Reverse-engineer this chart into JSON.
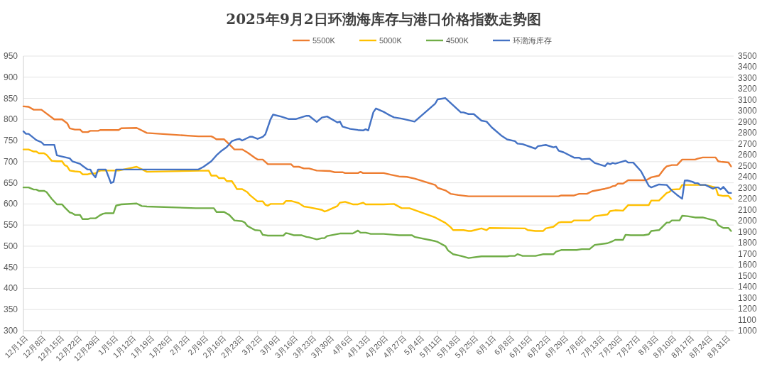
{
  "chart_data": {
    "type": "line",
    "title": "2025年9月2日环渤海库存与港口价格指数走势图",
    "legend": "top",
    "grid": "y",
    "line_style": "solid",
    "marker": "none",
    "xlim": [
      "2024-12-01",
      "2025-09-03"
    ],
    "xticks": [
      {
        "value": "2024-12-01",
        "label": "12月1日"
      },
      {
        "value": "2024-12-08",
        "label": "12月8日"
      },
      {
        "value": "2024-12-15",
        "label": "12月15日"
      },
      {
        "value": "2024-12-22",
        "label": "12月22日"
      },
      {
        "value": "2024-12-29",
        "label": "12月29日"
      },
      {
        "value": "2025-01-05",
        "label": "1月5日"
      },
      {
        "value": "2025-01-12",
        "label": "1月12日"
      },
      {
        "value": "2025-01-19",
        "label": "1月19日"
      },
      {
        "value": "2025-01-26",
        "label": "1月26日"
      },
      {
        "value": "2025-02-02",
        "label": "2月2日"
      },
      {
        "value": "2025-02-09",
        "label": "2月9日"
      },
      {
        "value": "2025-02-16",
        "label": "2月16日"
      },
      {
        "value": "2025-02-23",
        "label": "2月23日"
      },
      {
        "value": "2025-03-02",
        "label": "3月2日"
      },
      {
        "value": "2025-03-09",
        "label": "3月9日"
      },
      {
        "value": "2025-03-16",
        "label": "3月16日"
      },
      {
        "value": "2025-03-23",
        "label": "3月23日"
      },
      {
        "value": "2025-03-30",
        "label": "3月30日"
      },
      {
        "value": "2025-04-06",
        "label": "4月6日"
      },
      {
        "value": "2025-04-13",
        "label": "4月13日"
      },
      {
        "value": "2025-04-20",
        "label": "4月20日"
      },
      {
        "value": "2025-04-27",
        "label": "4月27日"
      },
      {
        "value": "2025-05-04",
        "label": "5月4日"
      },
      {
        "value": "2025-05-11",
        "label": "5月11日"
      },
      {
        "value": "2025-05-18",
        "label": "5月18日"
      },
      {
        "value": "2025-05-25",
        "label": "5月25日"
      },
      {
        "value": "2025-06-01",
        "label": "6月1日"
      },
      {
        "value": "2025-06-08",
        "label": "6月8日"
      },
      {
        "value": "2025-06-15",
        "label": "6月15日"
      },
      {
        "value": "2025-06-22",
        "label": "6月22日"
      },
      {
        "value": "2025-06-29",
        "label": "6月29日"
      },
      {
        "value": "2025-07-06",
        "label": "7月6日"
      },
      {
        "value": "2025-07-13",
        "label": "7月13日"
      },
      {
        "value": "2025-07-20",
        "label": "7月20日"
      },
      {
        "value": "2025-07-27",
        "label": "7月27日"
      },
      {
        "value": "2025-08-03",
        "label": "8月3日"
      },
      {
        "value": "2025-08-10",
        "label": "8月10日"
      },
      {
        "value": "2025-08-17",
        "label": "8月17日"
      },
      {
        "value": "2025-08-24",
        "label": "8月24日"
      },
      {
        "value": "2025-08-31",
        "label": "8月31日"
      }
    ],
    "ylim": [
      300,
      950
    ],
    "yticks": [
      300,
      350,
      400,
      450,
      500,
      550,
      600,
      650,
      700,
      750,
      800,
      850,
      900,
      950
    ],
    "y2lim": [
      1000,
      3500
    ],
    "y2ticks": [
      1000,
      1100,
      1200,
      1300,
      1400,
      1500,
      1600,
      1700,
      1800,
      1900,
      2000,
      2100,
      2200,
      2300,
      2400,
      2500,
      2600,
      2700,
      2800,
      2900,
      3000,
      3100,
      3200,
      3300,
      3400,
      3500
    ],
    "series": [
      {
        "name": "5500K",
        "color": "#ed7d31",
        "x": [
          "2024-12-01",
          "2024-12-03",
          "2024-12-05",
          "2024-12-08",
          "2024-12-13",
          "2024-12-16",
          "2024-12-18",
          "2024-12-19",
          "2024-12-21",
          "2024-12-23",
          "2024-12-24",
          "2024-12-26",
          "2024-12-27",
          "2024-12-30",
          "2024-12-31",
          "2025-01-07",
          "2025-01-08",
          "2025-01-14",
          "2025-01-18",
          "2025-02-07",
          "2025-02-12",
          "2025-02-13",
          "2025-02-14",
          "2025-02-17",
          "2025-02-19",
          "2025-02-21",
          "2025-02-24",
          "2025-02-26",
          "2025-03-01",
          "2025-03-02",
          "2025-03-04",
          "2025-03-06",
          "2025-03-15",
          "2025-03-16",
          "2025-03-18",
          "2025-03-20",
          "2025-03-22",
          "2025-03-25",
          "2025-03-30",
          "2025-04-01",
          "2025-04-04",
          "2025-04-05",
          "2025-04-10",
          "2025-04-11",
          "2025-04-12",
          "2025-04-20",
          "2025-04-23",
          "2025-04-26",
          "2025-04-29",
          "2025-05-02",
          "2025-05-10",
          "2025-05-11",
          "2025-05-14",
          "2025-05-16",
          "2025-05-19",
          "2025-05-23",
          "2025-06-27",
          "2025-06-28",
          "2025-07-03",
          "2025-07-05",
          "2025-07-08",
          "2025-07-10",
          "2025-07-15",
          "2025-07-17",
          "2025-07-18",
          "2025-07-19",
          "2025-07-20",
          "2025-07-22",
          "2025-07-24",
          "2025-07-31",
          "2025-08-02",
          "2025-08-05",
          "2025-08-07",
          "2025-08-08",
          "2025-08-10",
          "2025-08-12",
          "2025-08-14",
          "2025-08-19",
          "2025-08-20",
          "2025-08-22",
          "2025-08-27",
          "2025-08-28",
          "2025-08-29",
          "2025-09-01",
          "2025-09-02"
        ],
        "values": [
          831,
          830,
          823,
          823,
          800,
          800,
          791,
          779,
          776,
          776,
          770,
          770,
          773,
          773,
          775,
          775,
          779,
          780,
          768,
          760,
          760,
          757,
          753,
          753,
          741,
          729,
          729,
          722,
          709,
          705,
          705,
          694,
          694,
          688,
          688,
          684,
          684,
          679,
          678,
          675,
          675,
          673,
          673,
          676,
          673,
          673,
          669,
          665,
          664,
          660,
          645,
          638,
          632,
          624,
          621,
          618,
          618,
          620,
          620,
          624,
          624,
          630,
          636,
          639,
          642,
          643,
          648,
          648,
          656,
          656,
          663,
          667,
          683,
          689,
          692,
          692,
          705,
          705,
          707,
          710,
          710,
          701,
          700,
          698,
          689
        ]
      },
      {
        "name": "5000K",
        "color": "#ffc000",
        "x": [
          "2024-12-01",
          "2024-12-03",
          "2024-12-05",
          "2024-12-06",
          "2024-12-07",
          "2024-12-09",
          "2024-12-10",
          "2024-12-12",
          "2024-12-14",
          "2024-12-16",
          "2024-12-17",
          "2024-12-18",
          "2024-12-19",
          "2024-12-21",
          "2024-12-23",
          "2024-12-24",
          "2024-12-26",
          "2024-12-27",
          "2024-12-29",
          "2024-12-30",
          "2024-12-31",
          "2025-01-07",
          "2025-01-14",
          "2025-01-15",
          "2025-01-18",
          "2025-02-11",
          "2025-02-12",
          "2025-02-14",
          "2025-02-15",
          "2025-02-17",
          "2025-02-18",
          "2025-02-20",
          "2025-02-21",
          "2025-02-22",
          "2025-02-24",
          "2025-02-26",
          "2025-02-27",
          "2025-02-28",
          "2025-03-02",
          "2025-03-04",
          "2025-03-05",
          "2025-03-06",
          "2025-03-07",
          "2025-03-12",
          "2025-03-13",
          "2025-03-15",
          "2025-03-18",
          "2025-03-20",
          "2025-03-22",
          "2025-03-27",
          "2025-03-28",
          "2025-03-29",
          "2025-04-02",
          "2025-04-03",
          "2025-04-05",
          "2025-04-08",
          "2025-04-10",
          "2025-04-12",
          "2025-04-13",
          "2025-04-16",
          "2025-04-20",
          "2025-04-24",
          "2025-04-27",
          "2025-04-30",
          "2025-05-10",
          "2025-05-14",
          "2025-05-16",
          "2025-05-17",
          "2025-05-21",
          "2025-05-23",
          "2025-05-24",
          "2025-05-28",
          "2025-05-30",
          "2025-05-31",
          "2025-06-14",
          "2025-06-15",
          "2025-06-18",
          "2025-06-21",
          "2025-06-22",
          "2025-06-25",
          "2025-06-27",
          "2025-06-28",
          "2025-07-02",
          "2025-07-03",
          "2025-07-09",
          "2025-07-11",
          "2025-07-16",
          "2025-07-17",
          "2025-07-19",
          "2025-07-22",
          "2025-07-24",
          "2025-08-01",
          "2025-08-02",
          "2025-08-05",
          "2025-08-08",
          "2025-08-09",
          "2025-08-10",
          "2025-08-13",
          "2025-08-14",
          "2025-08-23",
          "2025-08-27",
          "2025-08-28",
          "2025-08-30",
          "2025-09-01",
          "2025-09-02"
        ],
        "values": [
          729,
          729,
          724,
          724,
          720,
          720,
          716,
          702,
          701,
          701,
          692,
          689,
          679,
          677,
          676,
          670,
          670,
          672,
          672,
          677,
          679,
          679,
          688,
          685,
          676,
          679,
          667,
          667,
          661,
          661,
          654,
          654,
          645,
          635,
          635,
          628,
          621,
          616,
          606,
          606,
          598,
          596,
          600,
          600,
          607,
          607,
          602,
          594,
          592,
          586,
          582,
          584,
          595,
          603,
          605,
          599,
          599,
          603,
          599,
          599,
          599,
          600,
          590,
          590,
          568,
          555,
          545,
          538,
          538,
          536,
          536,
          542,
          538,
          543,
          542,
          538,
          536,
          536,
          542,
          546,
          556,
          557,
          557,
          561,
          561,
          571,
          575,
          583,
          585,
          584,
          597,
          597,
          608,
          608,
          626,
          628,
          634,
          635,
          645,
          645,
          639,
          621,
          619,
          619,
          612
        ]
      },
      {
        "name": "4500K",
        "color": "#70ad47",
        "x": [
          "2024-12-01",
          "2024-12-03",
          "2024-12-05",
          "2024-12-06",
          "2024-12-07",
          "2024-12-09",
          "2024-12-10",
          "2024-12-11",
          "2024-12-12",
          "2024-12-14",
          "2024-12-16",
          "2024-12-17",
          "2024-12-19",
          "2024-12-20",
          "2024-12-21",
          "2024-12-23",
          "2024-12-24",
          "2024-12-26",
          "2024-12-27",
          "2024-12-29",
          "2024-12-31",
          "2025-01-01",
          "2025-01-02",
          "2025-01-05",
          "2025-01-06",
          "2025-01-08",
          "2025-01-14",
          "2025-01-16",
          "2025-01-18",
          "2025-02-06",
          "2025-02-13",
          "2025-02-14",
          "2025-02-17",
          "2025-02-19",
          "2025-02-21",
          "2025-02-24",
          "2025-02-25",
          "2025-02-26",
          "2025-03-01",
          "2025-03-03",
          "2025-03-04",
          "2025-03-06",
          "2025-03-12",
          "2025-03-13",
          "2025-03-14",
          "2025-03-16",
          "2025-03-19",
          "2025-03-21",
          "2025-03-22",
          "2025-03-25",
          "2025-03-27",
          "2025-03-28",
          "2025-03-29",
          "2025-04-03",
          "2025-04-08",
          "2025-04-10",
          "2025-04-11",
          "2025-04-13",
          "2025-04-15",
          "2025-04-20",
          "2025-04-24",
          "2025-04-26",
          "2025-05-01",
          "2025-05-02",
          "2025-05-10",
          "2025-05-11",
          "2025-05-14",
          "2025-05-15",
          "2025-05-17",
          "2025-05-20",
          "2025-05-23",
          "2025-05-28",
          "2025-06-07",
          "2025-06-08",
          "2025-06-10",
          "2025-06-11",
          "2025-06-13",
          "2025-06-18",
          "2025-06-21",
          "2025-06-25",
          "2025-06-26",
          "2025-06-28",
          "2025-07-04",
          "2025-07-06",
          "2025-07-09",
          "2025-07-11",
          "2025-07-16",
          "2025-07-18",
          "2025-07-19",
          "2025-07-22",
          "2025-07-23",
          "2025-07-25",
          "2025-07-30",
          "2025-08-01",
          "2025-08-02",
          "2025-08-05",
          "2025-08-08",
          "2025-08-09",
          "2025-08-10",
          "2025-08-13",
          "2025-08-14",
          "2025-08-16",
          "2025-08-19",
          "2025-08-22",
          "2025-08-27",
          "2025-08-28",
          "2025-08-30",
          "2025-09-01",
          "2025-09-02"
        ],
        "values": [
          639,
          639,
          634,
          634,
          631,
          631,
          628,
          620,
          612,
          599,
          599,
          592,
          580,
          578,
          574,
          574,
          564,
          564,
          566,
          566,
          574,
          577,
          578,
          578,
          596,
          599,
          601,
          595,
          594,
          590,
          590,
          581,
          581,
          574,
          561,
          559,
          556,
          548,
          538,
          537,
          527,
          525,
          525,
          531,
          530,
          526,
          526,
          522,
          521,
          516,
          519,
          519,
          524,
          530,
          530,
          537,
          532,
          532,
          529,
          529,
          527,
          526,
          526,
          522,
          512,
          510,
          500,
          490,
          481,
          477,
          472,
          476,
          476,
          477,
          477,
          481,
          477,
          477,
          481,
          481,
          487,
          491,
          491,
          493,
          493,
          503,
          507,
          512,
          515,
          515,
          527,
          526,
          526,
          528,
          536,
          538,
          556,
          556,
          561,
          561,
          572,
          571,
          568,
          568,
          560,
          550,
          543,
          543,
          536
        ]
      },
      {
        "name": "环渤海库存",
        "color": "#4472c4",
        "axis": "y2",
        "x": [
          "2024-12-01",
          "2024-12-02",
          "2024-12-03",
          "2024-12-06",
          "2024-12-08",
          "2024-12-09",
          "2024-12-13",
          "2024-12-14",
          "2024-12-16",
          "2024-12-19",
          "2024-12-20",
          "2024-12-23",
          "2024-12-24",
          "2024-12-26",
          "2024-12-27",
          "2024-12-28",
          "2024-12-29",
          "2024-12-30",
          "2025-01-02",
          "2025-01-04",
          "2025-01-05",
          "2025-01-06",
          "2025-02-07",
          "2025-02-09",
          "2025-02-12",
          "2025-02-14",
          "2025-02-16",
          "2025-02-18",
          "2025-02-20",
          "2025-02-22",
          "2025-02-23",
          "2025-02-24",
          "2025-02-27",
          "2025-02-28",
          "2025-03-02",
          "2025-03-04",
          "2025-03-05",
          "2025-03-06",
          "2025-03-07",
          "2025-03-08",
          "2025-03-11",
          "2025-03-14",
          "2025-03-17",
          "2025-03-21",
          "2025-03-22",
          "2025-03-25",
          "2025-03-27",
          "2025-03-29",
          "2025-04-02",
          "2025-04-03",
          "2025-04-04",
          "2025-04-07",
          "2025-04-10",
          "2025-04-12",
          "2025-04-13",
          "2025-04-14",
          "2025-04-16",
          "2025-04-17",
          "2025-04-20",
          "2025-04-22",
          "2025-04-24",
          "2025-04-27",
          "2025-05-02",
          "2025-05-10",
          "2025-05-11",
          "2025-05-14",
          "2025-05-20",
          "2025-05-21",
          "2025-05-23",
          "2025-05-25",
          "2025-05-28",
          "2025-05-30",
          "2025-06-01",
          "2025-06-05",
          "2025-06-07",
          "2025-06-10",
          "2025-06-11",
          "2025-06-13",
          "2025-06-18",
          "2025-06-19",
          "2025-06-22",
          "2025-06-25",
          "2025-06-26",
          "2025-06-27",
          "2025-06-29",
          "2025-07-03",
          "2025-07-05",
          "2025-07-06",
          "2025-07-09",
          "2025-07-11",
          "2025-07-15",
          "2025-07-16",
          "2025-07-17",
          "2025-07-18",
          "2025-07-19",
          "2025-07-23",
          "2025-07-24",
          "2025-07-26",
          "2025-07-29",
          "2025-08-01",
          "2025-08-02",
          "2025-08-05",
          "2025-08-08",
          "2025-08-10",
          "2025-08-12",
          "2025-08-14",
          "2025-08-15",
          "2025-08-16",
          "2025-08-18",
          "2025-08-19",
          "2025-08-20",
          "2025-08-21",
          "2025-08-23",
          "2025-08-26",
          "2025-08-27",
          "2025-08-28",
          "2025-08-29",
          "2025-08-30",
          "2025-09-01",
          "2025-09-02"
        ],
        "values": [
          2815,
          2792,
          2792,
          2735,
          2715,
          2692,
          2692,
          2596,
          2585,
          2569,
          2542,
          2519,
          2500,
          2467,
          2467,
          2423,
          2396,
          2467,
          2467,
          2344,
          2354,
          2467,
          2467,
          2492,
          2542,
          2596,
          2638,
          2671,
          2725,
          2742,
          2746,
          2731,
          2765,
          2765,
          2746,
          2765,
          2787,
          2854,
          2923,
          2967,
          2950,
          2927,
          2927,
          2956,
          2956,
          2900,
          2940,
          2950,
          2896,
          2904,
          2858,
          2837,
          2827,
          2823,
          2834,
          2823,
          2989,
          3023,
          2992,
          2965,
          2942,
          2931,
          2903,
          3067,
          3106,
          3117,
          2987,
          2987,
          2972,
          2972,
          2912,
          2903,
          2851,
          2771,
          2741,
          2726,
          2703,
          2698,
          2657,
          2680,
          2691,
          2669,
          2675,
          2639,
          2623,
          2575,
          2575,
          2561,
          2566,
          2527,
          2498,
          2525,
          2516,
          2527,
          2521,
          2548,
          2530,
          2530,
          2452,
          2320,
          2304,
          2331,
          2327,
          2275,
          2236,
          2202,
          2366,
          2368,
          2356,
          2343,
          2343,
          2327,
          2327,
          2293,
          2304,
          2304,
          2286,
          2309,
          2254,
          2254
        ]
      }
    ]
  }
}
